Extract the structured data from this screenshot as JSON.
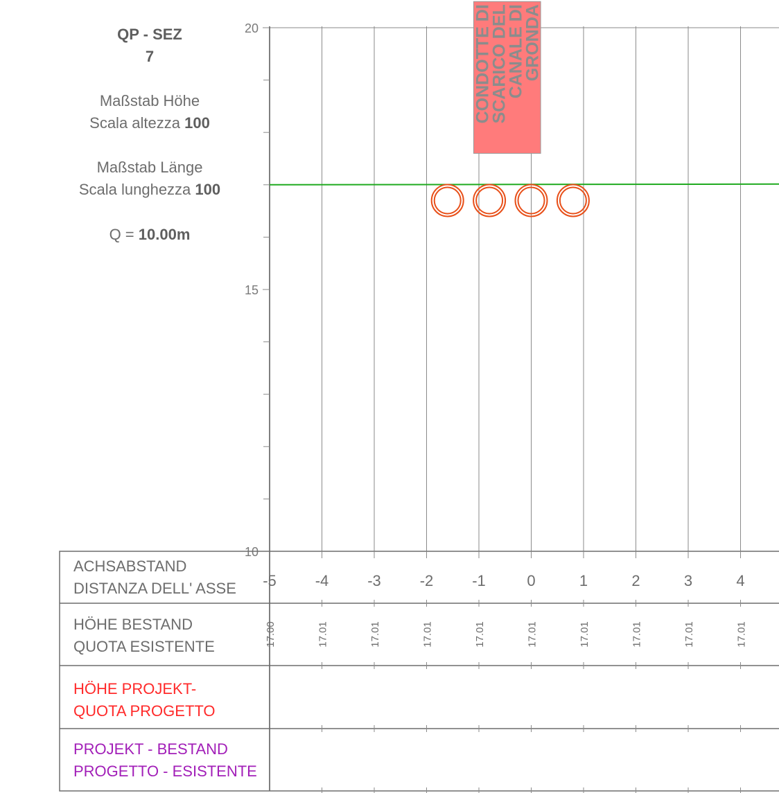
{
  "header": {
    "title_line1": "QP - SEZ",
    "title_line2": "7",
    "height_scale_de": "Maßstab Höhe",
    "height_scale_it": "Scala altezza",
    "height_scale_value": "100",
    "length_scale_de": "Maßstab Länge",
    "length_scale_it": "Scala lunghezza",
    "length_scale_value": "100",
    "q_label": "Q =",
    "q_value": "10.00m"
  },
  "table": {
    "row1_line1": "ACHSABSTAND",
    "row1_line2": "DISTANZA DELL' ASSE",
    "row2_line1": "HÖHE BESTAND",
    "row2_line2": "QUOTA ESISTENTE",
    "row3_line1": "HÖHE PROJEKT-",
    "row3_line2": "QUOTA PROGETTO",
    "row4_line1": "PROJEKT - BESTAND",
    "row4_line2": "PROGETTO - ESISTENTE"
  },
  "chart_data": {
    "type": "diagram",
    "y_axis_ticks": [
      20,
      15,
      10
    ],
    "ylim": [
      10,
      20
    ],
    "xlim": [
      -5,
      4.75
    ],
    "x_ticks": [
      -5,
      -4,
      -3,
      -2,
      -1,
      0,
      1,
      2,
      3,
      4
    ],
    "existing_heights": [
      "17.00",
      "17.01",
      "17.01",
      "17.01",
      "17.01",
      "17.01",
      "17.01",
      "17.01",
      "17.01",
      "17.01"
    ],
    "ground_line": {
      "level": 17.0,
      "color": "#1faa1f"
    },
    "pipes": {
      "x": [
        -1.6,
        -0.8,
        0.0,
        0.8
      ],
      "y": 16.7,
      "color": "#e8501a"
    },
    "label_box": {
      "text_lines": [
        "CONDOTTE DI",
        "SCARICO DEL",
        "CANALE DI",
        "GRONDA"
      ],
      "x_range": [
        -1.1,
        0.18
      ],
      "y_range": [
        17.6,
        20.5
      ],
      "fill": "#ff7b7b",
      "text_color": "#8c8c8c"
    },
    "colors": {
      "grid": "#8a8a8a",
      "axis": "#555555",
      "label_red": "#ff2a2a",
      "label_purple": "#a21fb8"
    }
  }
}
